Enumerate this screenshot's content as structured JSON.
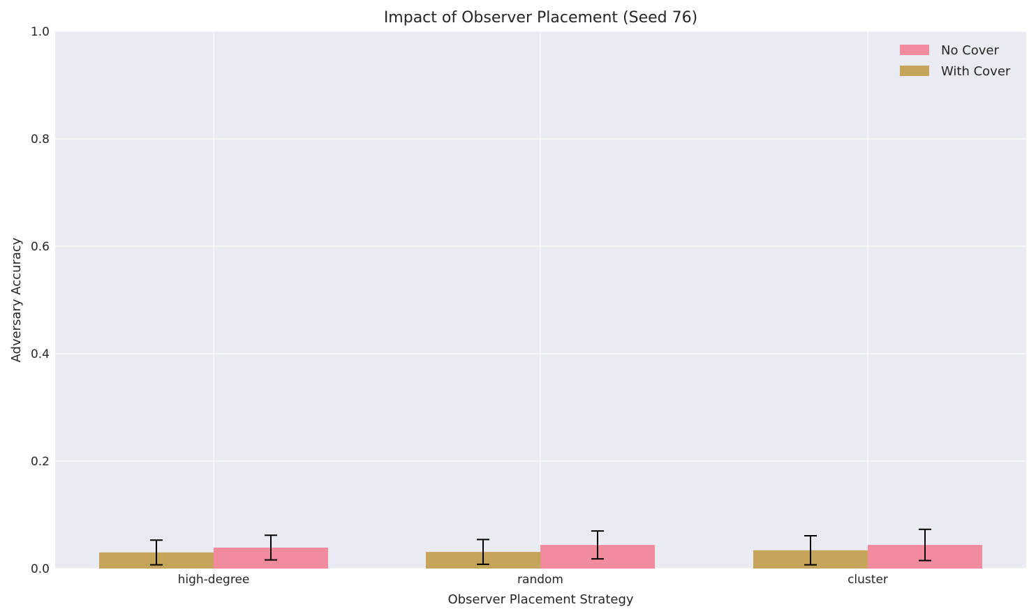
{
  "chart_data": {
    "type": "bar",
    "title": "Impact of Observer Placement (Seed 76)",
    "xlabel": "Observer Placement Strategy",
    "ylabel": "Adversary Accuracy",
    "categories": [
      "high-degree",
      "random",
      "cluster"
    ],
    "ylim": [
      0,
      1.0
    ],
    "yticks": [
      "0.0",
      "0.2",
      "0.4",
      "0.6",
      "0.8",
      "1.0"
    ],
    "grid": true,
    "legend_position": "top-right",
    "series": [
      {
        "name": "With Cover",
        "color": "#c4a55a",
        "values": [
          0.03,
          0.031,
          0.034
        ],
        "errors": [
          0.023,
          0.023,
          0.027
        ]
      },
      {
        "name": "No Cover",
        "color": "#f38b9e",
        "values": [
          0.039,
          0.044,
          0.044
        ],
        "errors": [
          0.023,
          0.026,
          0.029
        ]
      }
    ],
    "legend_order": [
      "No Cover",
      "With Cover"
    ]
  }
}
